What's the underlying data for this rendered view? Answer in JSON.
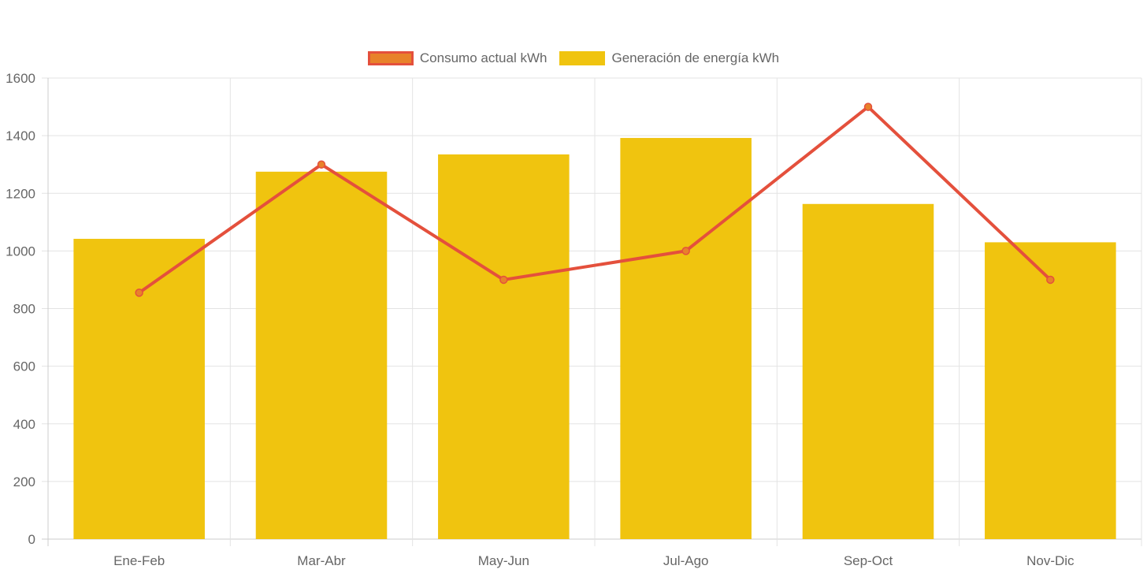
{
  "colors": {
    "line": "#e4503c",
    "line_point_fill": "#e8822a",
    "bar": "#f0c40f",
    "grid": "#e3e3e3",
    "axis": "#cccccc",
    "text": "#666666"
  },
  "legend": {
    "line_label": "Consumo actual kWh",
    "bar_label": "Generación de energía kWh"
  },
  "chart_data": {
    "type": "bar",
    "categories": [
      "Ene-Feb",
      "Mar-Abr",
      "May-Jun",
      "Jul-Ago",
      "Sep-Oct",
      "Nov-Dic"
    ],
    "series": [
      {
        "name": "Consumo actual kWh",
        "type": "line",
        "values": [
          855,
          1300,
          900,
          1000,
          1500,
          900
        ]
      },
      {
        "name": "Generación de energía kWh",
        "type": "bar",
        "values": [
          1042,
          1275,
          1335,
          1392,
          1163,
          1030
        ]
      }
    ],
    "ylim": [
      0,
      1600
    ],
    "yticks": [
      0,
      200,
      400,
      600,
      800,
      1000,
      1200,
      1400,
      1600
    ],
    "title": "",
    "xlabel": "",
    "ylabel": "",
    "legend_position": "top-center"
  }
}
